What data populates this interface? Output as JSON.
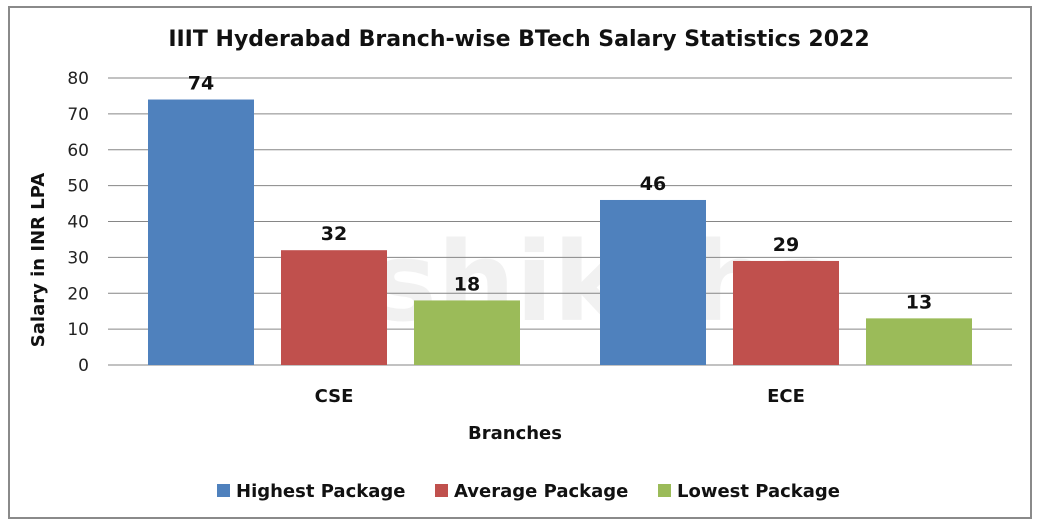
{
  "chart_data": {
    "type": "bar",
    "title": "IIIT Hyderabad Branch-wise BTech Salary Statistics 2022",
    "xlabel": "Branches",
    "ylabel": "Salary in INR LPA",
    "ylim": [
      0,
      80
    ],
    "yticks": [
      0,
      10,
      20,
      30,
      40,
      50,
      60,
      70,
      80
    ],
    "grid": true,
    "legend": "bottom",
    "categories": [
      "CSE",
      "ECE"
    ],
    "series": [
      {
        "name": "Highest Package",
        "values": [
          74,
          46
        ],
        "color": "#4F81BD"
      },
      {
        "name": "Average Package",
        "values": [
          32,
          29
        ],
        "color": "#C0504D"
      },
      {
        "name": "Lowest Package",
        "values": [
          18,
          13
        ],
        "color": "#9BBB59"
      }
    ],
    "watermark": "shiksha"
  }
}
